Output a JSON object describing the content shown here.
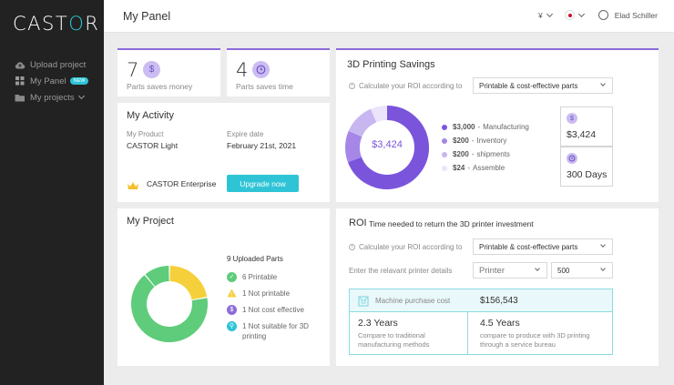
{
  "app": {
    "logo": "CASTOR"
  },
  "sidebar": {
    "items": [
      {
        "label": "Upload project",
        "badge": ""
      },
      {
        "label": "My Panel",
        "badge": "NEW"
      },
      {
        "label": "My projects",
        "badge": ""
      }
    ]
  },
  "header": {
    "title": "My Panel",
    "currency": "¥",
    "user": "Elad Schiller"
  },
  "stats": [
    {
      "value": "7",
      "icon": "$",
      "label": "Parts saves money"
    },
    {
      "value": "4",
      "icon": "clock",
      "label": "Parts saves time"
    }
  ],
  "activity": {
    "title": "My Activity",
    "product_label": "My Product",
    "product_value": "CASTOR Light",
    "expire_label": "Expire date",
    "expire_value": "February 21st, 2021",
    "plan": "CASTOR Enterprise",
    "upgrade_button": "Upgrade now"
  },
  "savings": {
    "title": "3D Printing Savings",
    "roi_label": "Calculate your ROI according to",
    "roi_select": "Printable & cost-effective parts",
    "center_value": "$3,424",
    "legend": [
      {
        "amount": "$3,000",
        "name": "Manufacturing",
        "value": 3000,
        "color": "#7a55dc"
      },
      {
        "amount": "$200",
        "name": "Inventory",
        "value": 200,
        "color": "#a487e6"
      },
      {
        "amount": "$200",
        "name": "shipments",
        "value": 200,
        "color": "#c7b6f0"
      },
      {
        "amount": "$24",
        "name": "Assemble",
        "value": 24,
        "color": "#ebe4fa"
      }
    ],
    "total_money": "$3,424",
    "total_time": "300 Days"
  },
  "project": {
    "title": "My Project",
    "uploaded": "9 Uploaded Parts",
    "statuses": [
      {
        "text": "6 Printable",
        "value": 6,
        "color": "#5ecc7a"
      },
      {
        "text": "1 Not printable",
        "value": 1,
        "color": "#f5d03b"
      },
      {
        "text": "1 Not cost effective",
        "value": 1,
        "color": "#8c6bd9"
      },
      {
        "text": "1 Not suitable for 3D printing",
        "value": 1,
        "color": "#2ec4d6"
      }
    ]
  },
  "roi": {
    "title": "ROI",
    "subtitle": "Time needed to return the 3D printer investment",
    "calc_label": "Calculate your ROI according to",
    "calc_select": "Printable & cost-effective parts",
    "printer_label": "Enter the relavant printer details",
    "printer_select": "Printer",
    "printer_value": "500",
    "machine_label": "Machine purchase cost",
    "machine_value": "$156,543",
    "years_traditional": "2.3 Years",
    "years_traditional_desc": "Compare to traditional manufacturing methods",
    "years_bureau": "4.5 Years",
    "years_bureau_desc": "compare to produce with 3D printing through a service bureau"
  }
}
